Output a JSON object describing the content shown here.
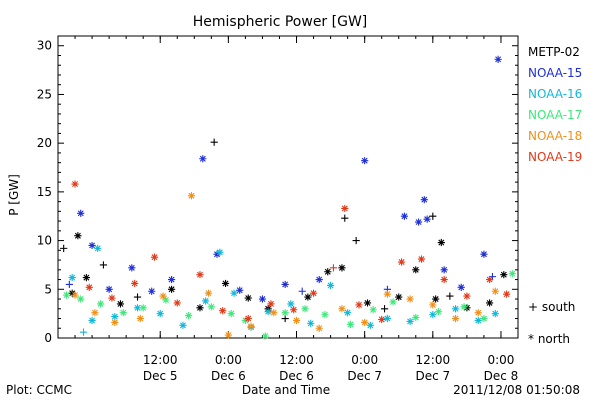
{
  "chart_data": {
    "type": "scatter",
    "title": "Hemispheric Power [GW]",
    "ylabel": "P [GW]",
    "xlabel": "Date and Time",
    "ylim": [
      0,
      31
    ],
    "yticks": [
      0,
      5,
      10,
      15,
      20,
      25,
      30
    ],
    "xlim": [
      "2011-12-04 18:00",
      "2011-12-08 03:00"
    ],
    "xticks": [
      {
        "time": "2011-12-05 12:00",
        "line1": "12:00",
        "line2": "Dec 5"
      },
      {
        "time": "2011-12-06 00:00",
        "line1": "0:00",
        "line2": "Dec 6"
      },
      {
        "time": "2011-12-06 12:00",
        "line1": "12:00",
        "line2": "Dec 6"
      },
      {
        "time": "2011-12-07 00:00",
        "line1": "0:00",
        "line2": "Dec 7"
      },
      {
        "time": "2011-12-07 12:00",
        "line1": "12:00",
        "line2": "Dec 7"
      },
      {
        "time": "2011-12-08 00:00",
        "line1": "0:00",
        "line2": "Dec 8"
      }
    ],
    "markers": {
      "south": "+ south",
      "north": "* north"
    },
    "series": [
      {
        "name": "METP-02",
        "color": "#000000",
        "points": [
          [
            "2011-12-04 19:00",
            9.2,
            "+"
          ],
          [
            "2011-12-04 21:30",
            10.5,
            "*"
          ],
          [
            "2011-12-04 20:30",
            4.6,
            "*"
          ],
          [
            "2011-12-04 23:00",
            6.2,
            "*"
          ],
          [
            "2011-12-05 02:00",
            7.5,
            "+"
          ],
          [
            "2011-12-05 05:00",
            3.5,
            "*"
          ],
          [
            "2011-12-05 08:00",
            4.2,
            "+"
          ],
          [
            "2011-12-05 14:00",
            5.0,
            "*"
          ],
          [
            "2011-12-05 19:00",
            3.1,
            "*"
          ],
          [
            "2011-12-05 21:30",
            20.1,
            "+"
          ],
          [
            "2011-12-05 23:30",
            5.6,
            "*"
          ],
          [
            "2011-12-06 03:30",
            4.1,
            "*"
          ],
          [
            "2011-12-06 07:00",
            3.0,
            "*"
          ],
          [
            "2011-12-06 10:00",
            2.0,
            "+"
          ],
          [
            "2011-12-06 14:00",
            4.2,
            "*"
          ],
          [
            "2011-12-06 17:30",
            6.8,
            "*"
          ],
          [
            "2011-12-06 20:30",
            12.3,
            "+"
          ],
          [
            "2011-12-06 22:30",
            10.0,
            "+"
          ],
          [
            "2011-12-06 20:00",
            7.2,
            "*"
          ],
          [
            "2011-12-07 00:30",
            3.6,
            "*"
          ],
          [
            "2011-12-07 03:30",
            3.0,
            "+"
          ],
          [
            "2011-12-07 06:00",
            4.2,
            "*"
          ],
          [
            "2011-12-07 09:00",
            7.0,
            "*"
          ],
          [
            "2011-12-07 12:00",
            12.5,
            "+"
          ],
          [
            "2011-12-07 13:30",
            9.8,
            "*"
          ],
          [
            "2011-12-07 15:00",
            4.3,
            "+"
          ],
          [
            "2011-12-07 18:00",
            3.1,
            "*"
          ],
          [
            "2011-12-07 22:00",
            3.6,
            "*"
          ],
          [
            "2011-12-08 00:30",
            6.5,
            "*"
          ],
          [
            "2011-12-07 12:30",
            4.0,
            "*"
          ]
        ]
      },
      {
        "name": "NOAA-15",
        "color": "#1f2fd6",
        "points": [
          [
            "2011-12-04 20:00",
            5.5,
            "+"
          ],
          [
            "2011-12-04 22:00",
            12.8,
            "*"
          ],
          [
            "2011-12-05 00:00",
            9.5,
            "*"
          ],
          [
            "2011-12-05 03:00",
            5.0,
            "*"
          ],
          [
            "2011-12-05 07:00",
            7.2,
            "*"
          ],
          [
            "2011-12-05 10:30",
            4.8,
            "*"
          ],
          [
            "2011-12-05 14:00",
            6.0,
            "*"
          ],
          [
            "2011-12-05 19:30",
            18.4,
            "*"
          ],
          [
            "2011-12-05 22:00",
            8.6,
            "*"
          ],
          [
            "2011-12-06 02:00",
            4.9,
            "*"
          ],
          [
            "2011-12-06 06:00",
            4.0,
            "*"
          ],
          [
            "2011-12-06 10:00",
            5.5,
            "*"
          ],
          [
            "2011-12-06 13:00",
            4.8,
            "+"
          ],
          [
            "2011-12-06 16:00",
            6.0,
            "*"
          ],
          [
            "2011-12-07 00:00",
            18.2,
            "*"
          ],
          [
            "2011-12-07 04:00",
            5.0,
            "+"
          ],
          [
            "2011-12-07 07:00",
            12.5,
            "*"
          ],
          [
            "2011-12-07 09:30",
            11.9,
            "*"
          ],
          [
            "2011-12-07 10:30",
            14.2,
            "*"
          ],
          [
            "2011-12-07 11:00",
            12.2,
            "*"
          ],
          [
            "2011-12-07 14:00",
            7.0,
            "*"
          ],
          [
            "2011-12-07 17:00",
            5.2,
            "*"
          ],
          [
            "2011-12-07 21:00",
            8.6,
            "*"
          ],
          [
            "2011-12-07 23:30",
            28.6,
            "*"
          ],
          [
            "2011-12-07 22:30",
            6.3,
            "+"
          ]
        ]
      },
      {
        "name": "NOAA-16",
        "color": "#12b8d8",
        "points": [
          [
            "2011-12-04 20:30",
            6.2,
            "*"
          ],
          [
            "2011-12-04 22:30",
            0.6,
            "+"
          ],
          [
            "2011-12-05 00:00",
            1.8,
            "*"
          ],
          [
            "2011-12-05 01:00",
            9.2,
            "*"
          ],
          [
            "2011-12-05 04:00",
            2.2,
            "*"
          ],
          [
            "2011-12-05 08:00",
            3.1,
            "*"
          ],
          [
            "2011-12-05 12:00",
            2.5,
            "*"
          ],
          [
            "2011-12-05 16:00",
            1.3,
            "*"
          ],
          [
            "2011-12-05 20:00",
            3.8,
            "*"
          ],
          [
            "2011-12-05 22:30",
            8.8,
            "*"
          ],
          [
            "2011-12-06 01:00",
            4.6,
            "*"
          ],
          [
            "2011-12-06 04:00",
            1.1,
            "*"
          ],
          [
            "2011-12-06 07:00",
            2.7,
            "*"
          ],
          [
            "2011-12-06 11:00",
            3.5,
            "*"
          ],
          [
            "2011-12-06 14:30",
            1.5,
            "*"
          ],
          [
            "2011-12-06 18:00",
            5.4,
            "*"
          ],
          [
            "2011-12-06 21:00",
            2.6,
            "*"
          ],
          [
            "2011-12-07 01:00",
            1.3,
            "*"
          ],
          [
            "2011-12-07 04:00",
            2.0,
            "*"
          ],
          [
            "2011-12-07 08:00",
            1.7,
            "*"
          ],
          [
            "2011-12-07 12:00",
            2.4,
            "*"
          ],
          [
            "2011-12-07 16:00",
            3.0,
            "*"
          ],
          [
            "2011-12-07 20:00",
            1.8,
            "*"
          ],
          [
            "2011-12-07 23:00",
            2.5,
            "*"
          ]
        ]
      },
      {
        "name": "NOAA-17",
        "color": "#3ee87a",
        "points": [
          [
            "2011-12-04 19:30",
            4.4,
            "*"
          ],
          [
            "2011-12-04 22:00",
            4.0,
            "*"
          ],
          [
            "2011-12-05 01:30",
            3.5,
            "*"
          ],
          [
            "2011-12-05 05:30",
            2.6,
            "*"
          ],
          [
            "2011-12-05 09:00",
            3.1,
            "*"
          ],
          [
            "2011-12-05 13:00",
            3.9,
            "*"
          ],
          [
            "2011-12-05 17:00",
            2.3,
            "*"
          ],
          [
            "2011-12-05 21:00",
            3.2,
            "*"
          ],
          [
            "2011-12-06 00:30",
            2.5,
            "*"
          ],
          [
            "2011-12-06 03:00",
            1.8,
            "*"
          ],
          [
            "2011-12-06 06:30",
            0.2,
            "*"
          ],
          [
            "2011-12-06 10:00",
            2.6,
            "*"
          ],
          [
            "2011-12-06 13:30",
            3.0,
            "*"
          ],
          [
            "2011-12-06 17:00",
            2.4,
            "*"
          ],
          [
            "2011-12-06 21:30",
            1.4,
            "*"
          ],
          [
            "2011-12-07 01:30",
            2.9,
            "*"
          ],
          [
            "2011-12-07 05:00",
            3.7,
            "*"
          ],
          [
            "2011-12-07 09:00",
            2.1,
            "*"
          ],
          [
            "2011-12-07 13:00",
            2.7,
            "*"
          ],
          [
            "2011-12-07 17:30",
            3.2,
            "*"
          ],
          [
            "2011-12-07 21:00",
            2.0,
            "*"
          ],
          [
            "2011-12-08 02:00",
            6.6,
            "*"
          ]
        ]
      },
      {
        "name": "NOAA-18",
        "color": "#f0901a",
        "points": [
          [
            "2011-12-04 21:00",
            4.4,
            "*"
          ],
          [
            "2011-12-05 00:30",
            2.6,
            "*"
          ],
          [
            "2011-12-05 04:00",
            1.6,
            "*"
          ],
          [
            "2011-12-05 08:30",
            2.0,
            "*"
          ],
          [
            "2011-12-05 12:30",
            4.3,
            "*"
          ],
          [
            "2011-12-05 17:30",
            14.6,
            "*"
          ],
          [
            "2011-12-05 20:30",
            4.6,
            "*"
          ],
          [
            "2011-12-06 00:00",
            0.3,
            "*"
          ],
          [
            "2011-12-06 04:00",
            1.2,
            "*"
          ],
          [
            "2011-12-06 08:00",
            2.6,
            "*"
          ],
          [
            "2011-12-06 12:00",
            1.8,
            "*"
          ],
          [
            "2011-12-06 16:00",
            1.0,
            "*"
          ],
          [
            "2011-12-06 20:00",
            3.0,
            "*"
          ],
          [
            "2011-12-07 00:00",
            1.6,
            "*"
          ],
          [
            "2011-12-07 04:00",
            4.5,
            "*"
          ],
          [
            "2011-12-07 08:00",
            4.0,
            "*"
          ],
          [
            "2011-12-07 12:00",
            3.4,
            "*"
          ],
          [
            "2011-12-07 16:00",
            2.0,
            "*"
          ],
          [
            "2011-12-07 20:00",
            2.6,
            "*"
          ],
          [
            "2011-12-07 23:00",
            4.8,
            "*"
          ]
        ]
      },
      {
        "name": "NOAA-19",
        "color": "#e03a1a",
        "points": [
          [
            "2011-12-04 21:00",
            15.8,
            "*"
          ],
          [
            "2011-12-04 23:30",
            5.2,
            "*"
          ],
          [
            "2011-12-05 03:30",
            4.1,
            "*"
          ],
          [
            "2011-12-05 07:30",
            5.6,
            "*"
          ],
          [
            "2011-12-05 11:00",
            8.3,
            "*"
          ],
          [
            "2011-12-05 15:00",
            3.6,
            "*"
          ],
          [
            "2011-12-05 19:00",
            6.5,
            "*"
          ],
          [
            "2011-12-05 23:00",
            2.8,
            "*"
          ],
          [
            "2011-12-06 03:30",
            2.0,
            "*"
          ],
          [
            "2011-12-06 07:30",
            3.5,
            "*"
          ],
          [
            "2011-12-06 11:30",
            2.9,
            "*"
          ],
          [
            "2011-12-06 15:00",
            4.6,
            "*"
          ],
          [
            "2011-12-06 18:30",
            7.2,
            "+"
          ],
          [
            "2011-12-06 20:30",
            13.3,
            "*"
          ],
          [
            "2011-12-06 23:00",
            3.4,
            "*"
          ],
          [
            "2011-12-07 03:00",
            1.9,
            "*"
          ],
          [
            "2011-12-07 06:30",
            7.8,
            "*"
          ],
          [
            "2011-12-07 10:00",
            8.1,
            "*"
          ],
          [
            "2011-12-07 14:00",
            6.0,
            "*"
          ],
          [
            "2011-12-07 18:00",
            4.3,
            "*"
          ],
          [
            "2011-12-07 22:00",
            6.0,
            "*"
          ],
          [
            "2011-12-08 01:00",
            4.5,
            "*"
          ]
        ]
      }
    ]
  },
  "footer": {
    "left": "Plot: CCMC",
    "center": "Date and Time",
    "right": "2011/12/08 01:50:08"
  }
}
